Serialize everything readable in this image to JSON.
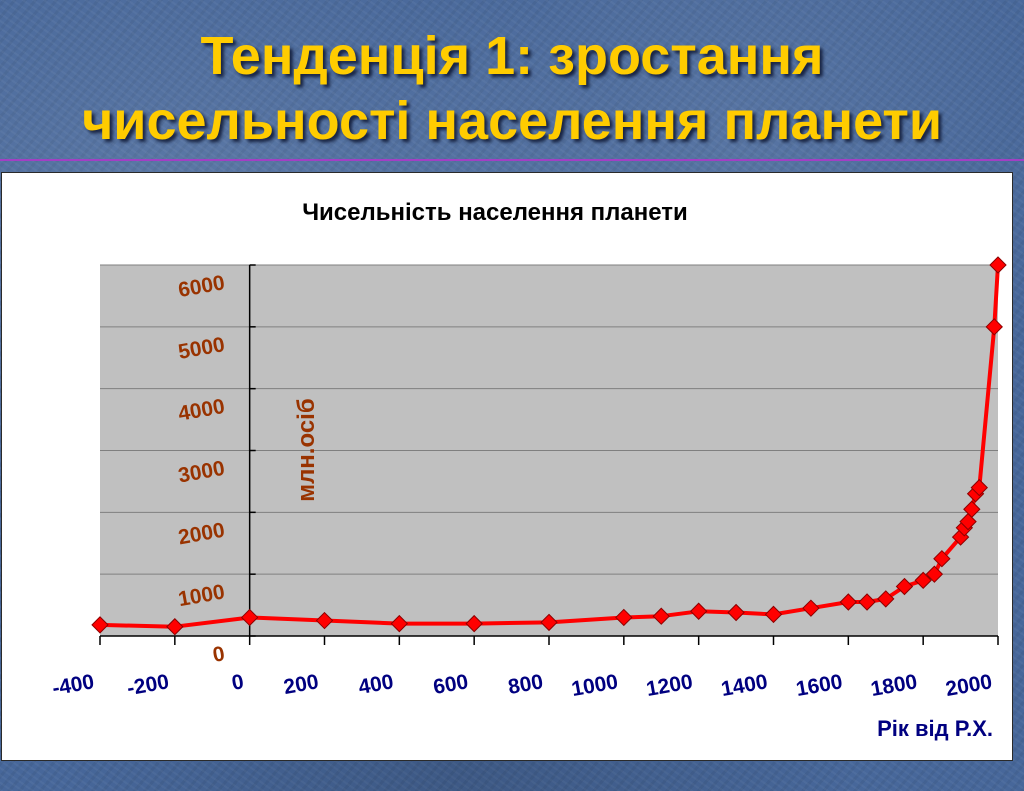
{
  "slide": {
    "title_lines": [
      "Тенденція 1: зростання",
      "чисельності населення планети"
    ],
    "title_color": "#ffcc00",
    "divider_color": "#a23fc4"
  },
  "chart_data": {
    "type": "line",
    "title": "Чисельність населення планети",
    "xlabel": "Рік від Р.Х.",
    "ylabel": "млн.осіб",
    "xlim": [
      -400,
      2000
    ],
    "ylim": [
      0,
      6000
    ],
    "x_ticks": [
      -400,
      -200,
      0,
      200,
      400,
      600,
      800,
      1000,
      1200,
      1400,
      1600,
      1800,
      2000
    ],
    "y_ticks": [
      0,
      1000,
      2000,
      3000,
      4000,
      5000,
      6000
    ],
    "y_axis_crosses_x_at": 0,
    "grid": true,
    "legend": "none",
    "marker": "diamond",
    "x": [
      -400,
      -200,
      0,
      200,
      400,
      600,
      800,
      1000,
      1100,
      1200,
      1300,
      1400,
      1500,
      1600,
      1650,
      1700,
      1750,
      1800,
      1830,
      1850,
      1900,
      1910,
      1920,
      1930,
      1940,
      1950,
      1990,
      2000
    ],
    "y": [
      180,
      150,
      300,
      250,
      200,
      200,
      220,
      300,
      320,
      400,
      380,
      350,
      450,
      550,
      550,
      600,
      800,
      900,
      1000,
      1250,
      1600,
      1750,
      1850,
      2050,
      2300,
      2400,
      5000,
      6000
    ],
    "colors": {
      "line": "#ff0000",
      "marker": "#ff0000",
      "marker_outline": "#8b0000",
      "plot_background": "#c0c0c0",
      "gridline": "#7f7f7f",
      "y_tick_labels": "#993300",
      "x_tick_labels": "#000080",
      "ylabel": "#993300",
      "xlabel": "#000080",
      "title": "#000000"
    }
  }
}
